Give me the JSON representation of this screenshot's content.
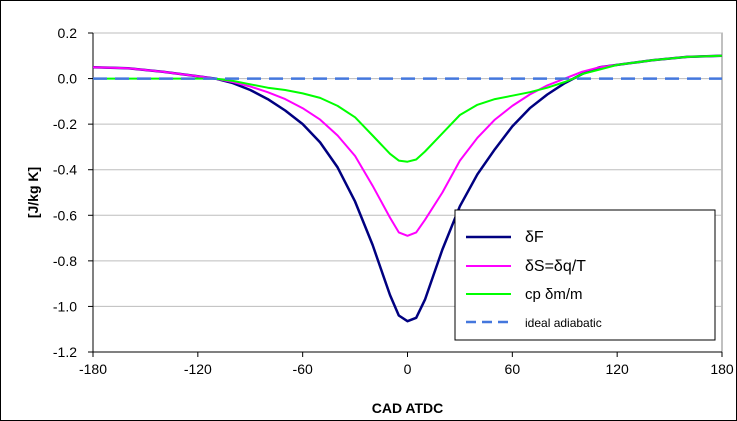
{
  "chart_data": {
    "type": "line",
    "title": "",
    "xlabel": "CAD ATDC",
    "ylabel": "[J/kg K]",
    "xlim": [
      -180,
      180
    ],
    "ylim": [
      -1.2,
      0.2
    ],
    "xticks": [
      -180,
      -120,
      -60,
      0,
      60,
      120,
      180
    ],
    "yticks": [
      0.2,
      0.0,
      -0.2,
      -0.4,
      -0.6,
      -0.8,
      -1.0,
      -1.2
    ],
    "xtick_labels": [
      "-180",
      "-120",
      "-60",
      "0",
      "60",
      "120",
      "180"
    ],
    "ytick_labels": [
      "0.2",
      "0.0",
      "-0.2",
      "-0.4",
      "-0.6",
      "-0.8",
      "-1.0",
      "-1.2"
    ],
    "grid": "horizontal",
    "legend_position": "bottom-right",
    "series": [
      {
        "name": "δF",
        "color": "#000080",
        "dash": "solid",
        "x": [
          -180,
          -160,
          -140,
          -120,
          -110,
          -100,
          -90,
          -80,
          -70,
          -60,
          -50,
          -40,
          -30,
          -20,
          -15,
          -10,
          -5,
          0,
          5,
          10,
          15,
          20,
          30,
          40,
          50,
          60,
          70,
          80,
          90,
          100,
          110,
          120,
          140,
          160,
          180
        ],
        "y": [
          0.05,
          0.045,
          0.03,
          0.01,
          0.0,
          -0.02,
          -0.05,
          -0.09,
          -0.14,
          -0.2,
          -0.28,
          -0.39,
          -0.54,
          -0.73,
          -0.84,
          -0.95,
          -1.04,
          -1.065,
          -1.05,
          -0.97,
          -0.86,
          -0.75,
          -0.56,
          -0.42,
          -0.31,
          -0.21,
          -0.13,
          -0.07,
          -0.02,
          0.02,
          0.05,
          0.06,
          0.08,
          0.095,
          0.1
        ]
      },
      {
        "name": "δS=δq/T",
        "color": "#ff00ff",
        "dash": "solid",
        "x": [
          -180,
          -160,
          -140,
          -120,
          -110,
          -100,
          -90,
          -80,
          -70,
          -60,
          -50,
          -40,
          -30,
          -20,
          -10,
          -5,
          0,
          5,
          10,
          20,
          30,
          40,
          50,
          60,
          70,
          80,
          90,
          100,
          110,
          120,
          140,
          160,
          180
        ],
        "y": [
          0.05,
          0.045,
          0.03,
          0.01,
          0.0,
          -0.015,
          -0.035,
          -0.06,
          -0.09,
          -0.13,
          -0.18,
          -0.25,
          -0.34,
          -0.47,
          -0.61,
          -0.675,
          -0.69,
          -0.675,
          -0.62,
          -0.5,
          -0.36,
          -0.26,
          -0.18,
          -0.12,
          -0.07,
          -0.03,
          0.0,
          0.03,
          0.05,
          0.06,
          0.08,
          0.095,
          0.1
        ]
      },
      {
        "name": "cp δm/m",
        "color": "#00ff00",
        "dash": "solid",
        "x": [
          -180,
          -160,
          -140,
          -120,
          -110,
          -100,
          -90,
          -80,
          -70,
          -60,
          -50,
          -40,
          -30,
          -20,
          -10,
          -5,
          0,
          5,
          10,
          20,
          30,
          40,
          50,
          60,
          70,
          80,
          90,
          95,
          100,
          110,
          120,
          140,
          160,
          180
        ],
        "y": [
          0.0,
          0.0,
          0.0,
          0.0,
          0.0,
          -0.01,
          -0.025,
          -0.04,
          -0.05,
          -0.065,
          -0.085,
          -0.12,
          -0.17,
          -0.25,
          -0.33,
          -0.36,
          -0.365,
          -0.355,
          -0.32,
          -0.24,
          -0.16,
          -0.115,
          -0.09,
          -0.075,
          -0.06,
          -0.04,
          -0.015,
          0.0,
          0.02,
          0.04,
          0.06,
          0.08,
          0.095,
          0.1
        ]
      },
      {
        "name": "ideal adiabatic",
        "color": "#4477dd",
        "dash": "dashed",
        "x": [
          -180,
          180
        ],
        "y": [
          0.0,
          0.0
        ]
      }
    ]
  }
}
